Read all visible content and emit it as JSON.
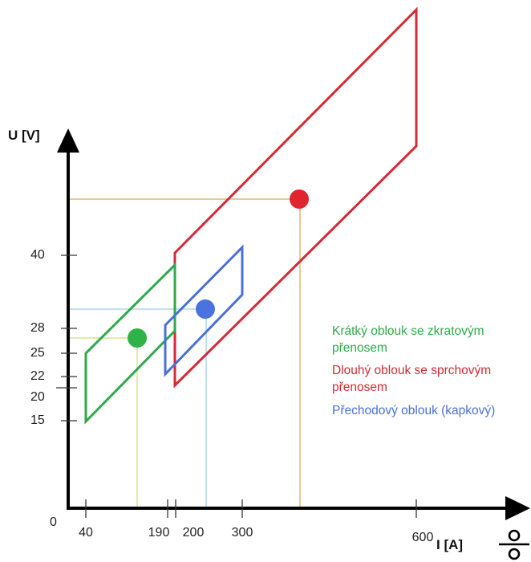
{
  "axes": {
    "y_title": "U [V]",
    "x_title": "I [A]",
    "origin_label": "0",
    "x_ticks": [
      {
        "value": 40,
        "label": "40"
      },
      {
        "value": 190,
        "label": "190"
      },
      {
        "value": 200,
        "label": "200"
      },
      {
        "value": 300,
        "label": "300"
      },
      {
        "value": 600,
        "label": "600"
      }
    ],
    "y_ticks": [
      {
        "value": 15,
        "label": "15"
      },
      {
        "value": 20,
        "label": "20"
      },
      {
        "value": 22,
        "label": "22"
      },
      {
        "value": 25,
        "label": "25"
      },
      {
        "value": 28,
        "label": "28"
      },
      {
        "value": 40,
        "label": "40"
      }
    ]
  },
  "regions": [
    {
      "id": "short-arc",
      "color": "#2eaa4a",
      "legend": [
        "Krátký oblouk se zkratovým",
        "přenosem"
      ],
      "operating_point": {
        "current": 118,
        "voltage": 26.5
      }
    },
    {
      "id": "spray-arc",
      "color": "#d42a35",
      "legend": [
        "Dlouhý oblouk se sprchovým",
        "přenosem"
      ],
      "operating_point": {
        "current": 405,
        "voltage": 53.5
      }
    },
    {
      "id": "globular-arc",
      "color": "#4a6fd8",
      "legend": [
        "Přechodový oblouk (kapkový)"
      ],
      "operating_point": {
        "current": 245,
        "voltage": 33.2
      }
    }
  ],
  "symbol": "welding-symbol-icon"
}
